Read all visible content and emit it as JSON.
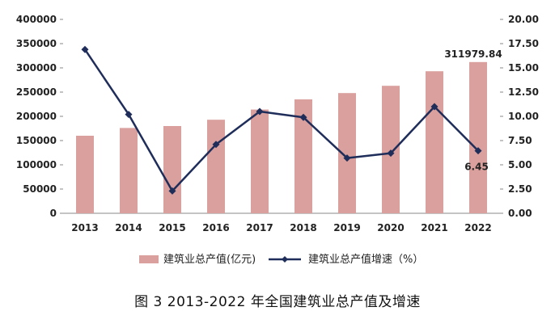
{
  "chart_data": {
    "type": "bar",
    "categories": [
      "2013",
      "2014",
      "2015",
      "2016",
      "2017",
      "2018",
      "2019",
      "2020",
      "2021",
      "2022"
    ],
    "series": [
      {
        "name": "建筑业总产值(亿元)",
        "type": "bar",
        "axis": "left",
        "color": "#d9a09d",
        "values": [
          160000,
          176000,
          180000,
          193000,
          214000,
          235000,
          248000,
          263000,
          293000,
          311979.84
        ]
      },
      {
        "name": "建筑业总产值增速（%）",
        "type": "line",
        "axis": "right",
        "color": "#1f2d5a",
        "values": [
          16.9,
          10.2,
          2.3,
          7.1,
          10.5,
          9.9,
          5.7,
          6.2,
          11.0,
          6.45
        ]
      }
    ],
    "y_left": {
      "min": 0,
      "max": 400000,
      "step": 50000,
      "tick_labels": [
        "0",
        "50000",
        "100000",
        "150000",
        "200000",
        "250000",
        "300000",
        "350000",
        "400000"
      ]
    },
    "y_right": {
      "min": 0,
      "max": 20,
      "step": 2.5,
      "tick_labels": [
        "0.00",
        "2.50",
        "5.00",
        "7.50",
        "10.00",
        "12.50",
        "15.00",
        "17.50",
        "20.00"
      ]
    },
    "annotations": [
      {
        "text": "311979.84",
        "series": 0,
        "category": "2022"
      },
      {
        "text": "6.45",
        "series": 1,
        "category": "2022"
      }
    ],
    "legend": {
      "placement": "bottom"
    },
    "caption": "图 3   2013-2022 年全国建筑业总产值及增速"
  }
}
